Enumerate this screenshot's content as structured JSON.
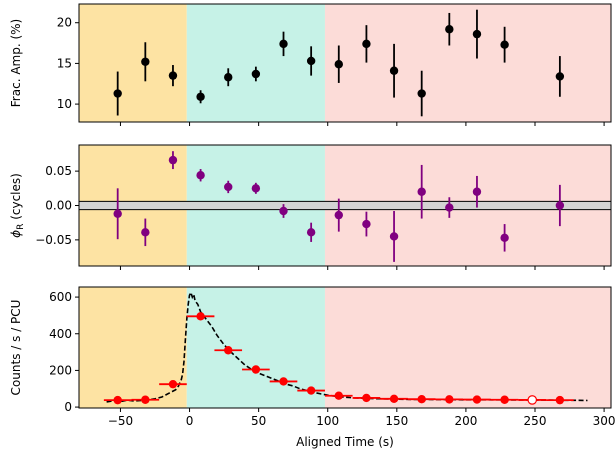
{
  "chart_data": {
    "type": "scatter",
    "shared_x": {
      "label": "Aligned Time (s)",
      "range": [
        -80,
        305
      ],
      "ticks": [
        -50,
        0,
        50,
        100,
        150,
        200,
        250,
        300
      ]
    },
    "phase_bands": [
      {
        "name": "rise",
        "x0": -80,
        "x1": -2,
        "color": "#fde3a3"
      },
      {
        "name": "peak",
        "x0": -2,
        "x1": 98,
        "color": "#c6f2e7"
      },
      {
        "name": "decay",
        "x0": 98,
        "x1": 305,
        "color": "#fcdcd8"
      }
    ],
    "panels": [
      {
        "id": "amp",
        "ylabel": "Frac. Amp. (%)",
        "yrange": [
          7.8,
          22.3
        ],
        "yticks": [
          10,
          15,
          20
        ],
        "ytick_labels": [
          "10",
          "15",
          "20"
        ],
        "color": "#000000",
        "points": [
          {
            "x": -52,
            "y": 11.3,
            "err": 2.7
          },
          {
            "x": -32,
            "y": 15.2,
            "err": 2.4
          },
          {
            "x": -12,
            "y": 13.5,
            "err": 1.3
          },
          {
            "x": 8,
            "y": 10.9,
            "err": 0.8
          },
          {
            "x": 28,
            "y": 13.3,
            "err": 1.1
          },
          {
            "x": 48,
            "y": 13.7,
            "err": 0.9
          },
          {
            "x": 68,
            "y": 17.4,
            "err": 1.5
          },
          {
            "x": 88,
            "y": 15.3,
            "err": 1.8
          },
          {
            "x": 108,
            "y": 14.9,
            "err": 2.3
          },
          {
            "x": 128,
            "y": 17.4,
            "err": 2.3
          },
          {
            "x": 148,
            "y": 14.1,
            "err": 3.3
          },
          {
            "x": 168,
            "y": 11.3,
            "err": 2.8
          },
          {
            "x": 188,
            "y": 19.2,
            "err": 2.0
          },
          {
            "x": 208,
            "y": 18.6,
            "err": 3.0
          },
          {
            "x": 228,
            "y": 17.3,
            "err": 2.2
          },
          {
            "x": 268,
            "y": 13.4,
            "err": 2.5
          }
        ]
      },
      {
        "id": "phase",
        "ylabel": "ϕR (cycles)",
        "ylabel_main": "ϕ",
        "ylabel_sub": "R",
        "ylabel_rest": " (cycles)",
        "yrange": [
          -0.088,
          0.088
        ],
        "yticks": [
          0.05,
          0.0,
          -0.05
        ],
        "ytick_labels": [
          "0.05",
          "0.00",
          "−0.05"
        ],
        "color": "#800080",
        "zero_band": [
          -0.006,
          0.006
        ],
        "points": [
          {
            "x": -52,
            "y": -0.012,
            "err": 0.037
          },
          {
            "x": -32,
            "y": -0.039,
            "err": 0.02
          },
          {
            "x": -12,
            "y": 0.066,
            "err": 0.013
          },
          {
            "x": 8,
            "y": 0.044,
            "err": 0.009
          },
          {
            "x": 28,
            "y": 0.027,
            "err": 0.009
          },
          {
            "x": 48,
            "y": 0.025,
            "err": 0.008
          },
          {
            "x": 68,
            "y": -0.008,
            "err": 0.01
          },
          {
            "x": 88,
            "y": -0.039,
            "err": 0.014
          },
          {
            "x": 108,
            "y": -0.014,
            "err": 0.024
          },
          {
            "x": 128,
            "y": -0.027,
            "err": 0.018
          },
          {
            "x": 148,
            "y": -0.045,
            "err": 0.037
          },
          {
            "x": 168,
            "y": 0.02,
            "err": 0.039
          },
          {
            "x": 188,
            "y": -0.003,
            "err": 0.015
          },
          {
            "x": 208,
            "y": 0.02,
            "err": 0.023
          },
          {
            "x": 228,
            "y": -0.047,
            "err": 0.02
          },
          {
            "x": 268,
            "y": 0.0,
            "err": 0.03
          }
        ]
      },
      {
        "id": "counts",
        "ylabel": "Counts / s / PCU",
        "yrange": [
          -5,
          655
        ],
        "yticks": [
          0,
          200,
          400,
          600
        ],
        "ytick_labels": [
          "0",
          "200",
          "400",
          "600"
        ],
        "color": "#ff0000",
        "lightcurve": [
          [
            -60,
            28
          ],
          [
            -55,
            35
          ],
          [
            -50,
            30
          ],
          [
            -45,
            38
          ],
          [
            -40,
            33
          ],
          [
            -35,
            36
          ],
          [
            -30,
            40
          ],
          [
            -25,
            45
          ],
          [
            -20,
            55
          ],
          [
            -15,
            75
          ],
          [
            -10,
            95
          ],
          [
            -8,
            115
          ],
          [
            -6,
            150
          ],
          [
            -5,
            180
          ],
          [
            -4,
            250
          ],
          [
            -3,
            370
          ],
          [
            -2,
            480
          ],
          [
            -1,
            560
          ],
          [
            0,
            610
          ],
          [
            1,
            625
          ],
          [
            2,
            600
          ],
          [
            3,
            615
          ],
          [
            4,
            580
          ],
          [
            6,
            560
          ],
          [
            8,
            520
          ],
          [
            12,
            480
          ],
          [
            16,
            440
          ],
          [
            20,
            390
          ],
          [
            25,
            340
          ],
          [
            30,
            300
          ],
          [
            35,
            265
          ],
          [
            40,
            230
          ],
          [
            45,
            205
          ],
          [
            50,
            185
          ],
          [
            55,
            170
          ],
          [
            60,
            155
          ],
          [
            65,
            140
          ],
          [
            70,
            125
          ],
          [
            75,
            115
          ],
          [
            80,
            100
          ],
          [
            85,
            90
          ],
          [
            90,
            80
          ],
          [
            95,
            72
          ],
          [
            100,
            65
          ],
          [
            105,
            60
          ],
          [
            110,
            55
          ],
          [
            120,
            50
          ],
          [
            130,
            47
          ],
          [
            140,
            45
          ],
          [
            150,
            43
          ],
          [
            160,
            42
          ],
          [
            170,
            42
          ],
          [
            180,
            41
          ],
          [
            190,
            41
          ],
          [
            200,
            40
          ],
          [
            210,
            40
          ],
          [
            220,
            40
          ],
          [
            230,
            39
          ],
          [
            240,
            39
          ],
          [
            250,
            38
          ],
          [
            260,
            38
          ],
          [
            270,
            37
          ],
          [
            280,
            37
          ],
          [
            288,
            36
          ]
        ],
        "points": [
          {
            "x": -52,
            "y": 38,
            "xerr": 10,
            "filled": true
          },
          {
            "x": -32,
            "y": 40,
            "xerr": 10,
            "filled": true
          },
          {
            "x": -12,
            "y": 125,
            "xerr": 10,
            "filled": true
          },
          {
            "x": 8,
            "y": 495,
            "xerr": 10,
            "filled": true
          },
          {
            "x": 28,
            "y": 310,
            "xerr": 10,
            "filled": true
          },
          {
            "x": 48,
            "y": 205,
            "xerr": 10,
            "filled": true
          },
          {
            "x": 68,
            "y": 140,
            "xerr": 10,
            "filled": true
          },
          {
            "x": 88,
            "y": 90,
            "xerr": 10,
            "filled": true
          },
          {
            "x": 108,
            "y": 62,
            "xerr": 10,
            "filled": true
          },
          {
            "x": 128,
            "y": 50,
            "xerr": 10,
            "filled": true
          },
          {
            "x": 148,
            "y": 45,
            "xerr": 10,
            "filled": true
          },
          {
            "x": 168,
            "y": 43,
            "xerr": 10,
            "filled": true
          },
          {
            "x": 188,
            "y": 42,
            "xerr": 10,
            "filled": true
          },
          {
            "x": 208,
            "y": 41,
            "xerr": 10,
            "filled": true
          },
          {
            "x": 228,
            "y": 40,
            "xerr": 10,
            "filled": true
          },
          {
            "x": 248,
            "y": 39,
            "xerr": 10,
            "filled": false
          },
          {
            "x": 268,
            "y": 38,
            "xerr": 10,
            "filled": true
          }
        ]
      }
    ]
  }
}
